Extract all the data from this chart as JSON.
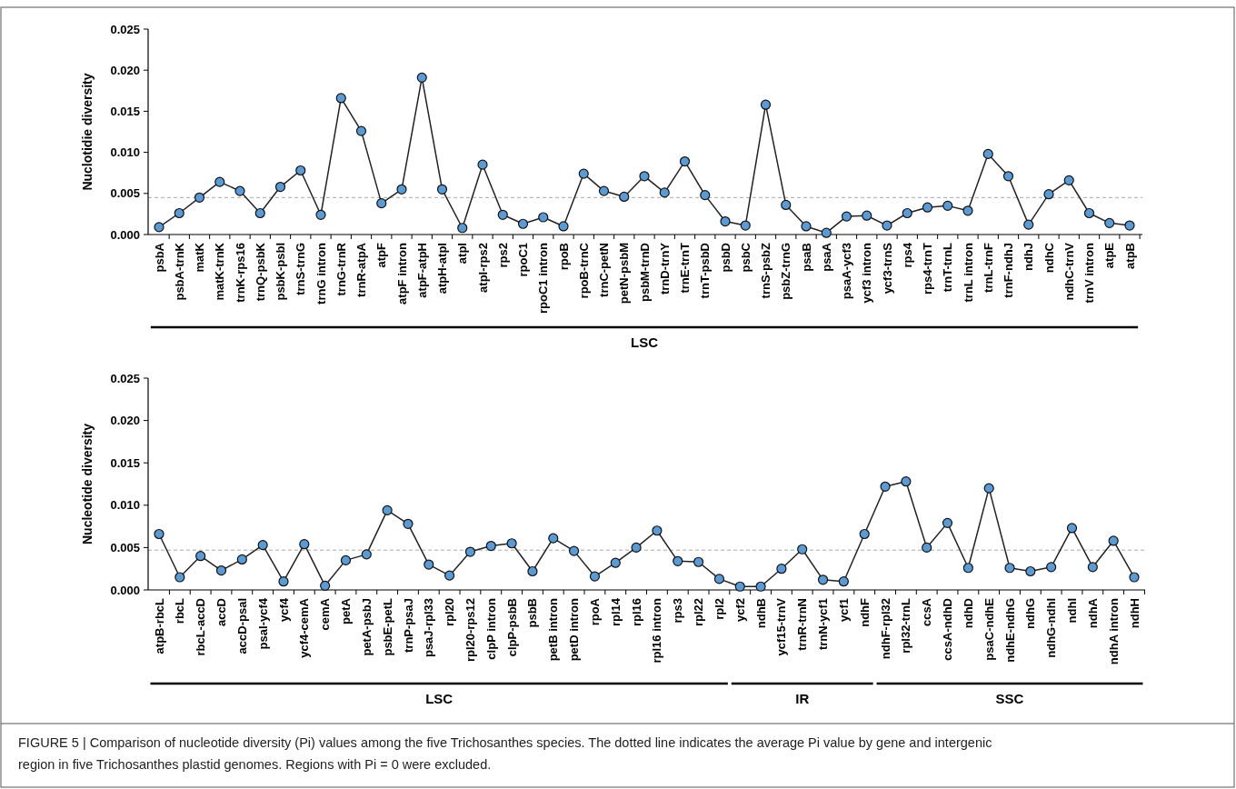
{
  "chart_data": [
    {
      "type": "line",
      "ylabel": "Nuclotidie diversity",
      "categories": [
        "psbA",
        "psbA-trnK",
        "matK",
        "matK-trnK",
        "trnK-rps16",
        "trnQ-psbK",
        "psbK-psbI",
        "trnS-trnG",
        "trnG intron",
        "trnG-trnR",
        "trnR-atpA",
        "atpF",
        "atpF intron",
        "atpF-atpH",
        "atpH-atpI",
        "atpI",
        "atpI-rps2",
        "rps2",
        "rpoC1",
        "rpoC1 intron",
        "rpoB",
        "rpoB-trnC",
        "trnC-petN",
        "petN-psbM",
        "psbM-trnD",
        "trnD-trnY",
        "trnE-trnT",
        "trnT-psbD",
        "psbD",
        "psbC",
        "trnS-psbZ",
        "psbZ-trnG",
        "psaB",
        "psaA",
        "psaA-ycf3",
        "ycf3 intron",
        "ycf3-trnS",
        "rps4",
        "rps4-trnT",
        "trnT-trnL",
        "trnL intron",
        "trnL-trnF",
        "trnF-ndhJ",
        "ndhJ",
        "ndhC",
        "ndhC-trnV",
        "trnV intron",
        "atpE",
        "atpB"
      ],
      "series": [
        {
          "color": "#5b9bd5",
          "values": [
            0.0009,
            0.0026,
            0.0045,
            0.0064,
            0.0053,
            0.0026,
            0.0058,
            0.0078,
            0.0024,
            0.0166,
            0.0126,
            0.0038,
            0.0055,
            0.0191,
            0.0055,
            0.0008,
            0.0085,
            0.0024,
            0.0013,
            0.0021,
            0.001,
            0.0074,
            0.0053,
            0.0046,
            0.0071,
            0.0051,
            0.0089,
            0.0048,
            0.0016,
            0.0011,
            0.0158,
            0.0036,
            0.001,
            0.0002,
            0.0022,
            0.0023,
            0.0011,
            0.0026,
            0.0033,
            0.0035,
            0.0029,
            0.0098,
            0.0071,
            0.0012,
            0.0049,
            0.0066,
            0.0026,
            0.0014,
            0.0011
          ]
        }
      ],
      "ylim": [
        0,
        0.025
      ],
      "yticks": [
        {
          "value": 0,
          "label": "0.000"
        },
        {
          "value": 0.005,
          "label": "0.005"
        },
        {
          "value": 0.01,
          "label": "0.010"
        },
        {
          "value": 0.015,
          "label": "0.015"
        },
        {
          "value": 0.02,
          "label": "0.020"
        },
        {
          "value": 0.025,
          "label": "0.025"
        }
      ],
      "marker": "circle",
      "ref_lines": [
        {
          "axis": "y",
          "value": 0.0045,
          "color": "#aaaaaa",
          "line_style": "dashed"
        }
      ],
      "annotations": [
        "LSC"
      ]
    },
    {
      "type": "line",
      "ylabel": "Nucleotide diversity",
      "categories": [
        "atpB-rbcL",
        "rbcL",
        "rbcL-accD",
        "accD",
        "accD-psaI",
        "psaI-ycf4",
        "ycf4",
        "ycf4-cemA",
        "cemA",
        "petA",
        "petA-psbJ",
        "psbE-petL",
        "trnP-psaJ",
        "psaJ-rpl33",
        "rpl20",
        "rpl20-rps12",
        "clpP intron",
        "clpP-psbB",
        "psbB",
        "petB intron",
        "petD intron",
        "rpoA",
        "rpl14",
        "rpl16",
        "rpl16 intron",
        "rps3",
        "rpl22",
        "rpl2",
        "ycf2",
        "ndhB",
        "ycf15-trnV",
        "trnR-trnN",
        "trnN-ycf1",
        "ycf1",
        "ndhF",
        "ndhF-rpl32",
        "rpl32-trnL",
        "ccsA",
        "ccsA-ndhD",
        "ndhD",
        "psaC-ndhE",
        "ndhE-ndhG",
        "ndhG",
        "ndhG-ndhI",
        "ndhI",
        "ndhA",
        "ndhA intron",
        "ndhH"
      ],
      "series": [
        {
          "color": "#5b9bd5",
          "values": [
            0.0066,
            0.0015,
            0.004,
            0.0023,
            0.0036,
            0.0053,
            0.001,
            0.0054,
            0.0005,
            0.0035,
            0.0042,
            0.0094,
            0.0078,
            0.003,
            0.0017,
            0.0045,
            0.0052,
            0.0055,
            0.0022,
            0.0061,
            0.0046,
            0.0016,
            0.0032,
            0.005,
            0.007,
            0.0034,
            0.0033,
            0.0013,
            0.0004,
            0.0004,
            0.0025,
            0.0048,
            0.0012,
            0.001,
            0.0066,
            0.0122,
            0.0128,
            0.005,
            0.0079,
            0.0026,
            0.012,
            0.0026,
            0.0022,
            0.0027,
            0.0073,
            0.0027,
            0.0058,
            0.0015
          ]
        }
      ],
      "ylim": [
        0,
        0.025
      ],
      "yticks": [
        {
          "value": 0,
          "label": "0.000"
        },
        {
          "value": 0.005,
          "label": "0.005"
        },
        {
          "value": 0.01,
          "label": "0.010"
        },
        {
          "value": 0.015,
          "label": "0.015"
        },
        {
          "value": 0.02,
          "label": "0.020"
        },
        {
          "value": 0.025,
          "label": "0.025"
        }
      ],
      "marker": "circle",
      "ref_lines": [
        {
          "axis": "y",
          "value": 0.0047,
          "color": "#aaaaaa",
          "line_style": "dashed"
        }
      ],
      "annotations": [
        "LSC",
        "IR",
        "SSC",
        "FIGURE 5 | Comparison of nucleotide diversity (Pi) values among the five Trichosanthes species. The dotted line indicates the average Pi value by gene and intergenic region in five Trichosanthes plastid genomes. Regions with Pi = 0 were excluded."
      ]
    }
  ]
}
